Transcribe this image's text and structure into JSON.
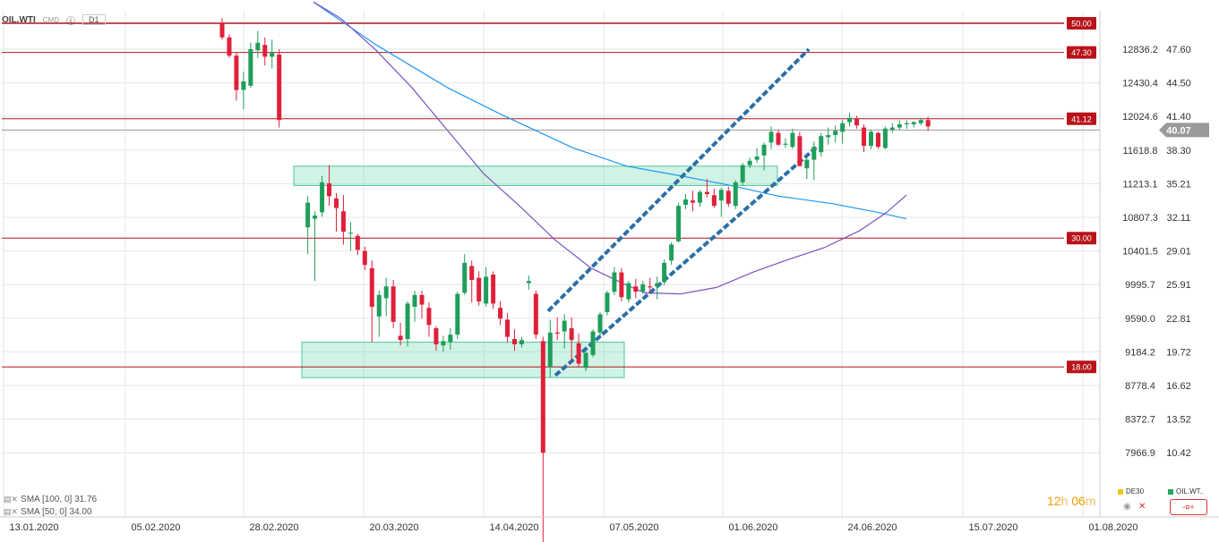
{
  "header": {
    "symbol": "OIL.WTI",
    "instrument_type": "CMD",
    "timeframe": "D1"
  },
  "indicators": [
    {
      "label": "SMA [100, 0] 31.76",
      "color": "#2196f3"
    },
    {
      "label": "SMA [50, 0] 34.00",
      "color": "#7b52c0"
    }
  ],
  "timer": {
    "hours": "12",
    "h": "h",
    "minutes": "06",
    "m": "m"
  },
  "instruments": [
    {
      "label": "DE30",
      "color": "#f5c518"
    },
    {
      "label": "OIL.WT..",
      "color": "#26a65b"
    }
  ],
  "controls": {
    "hide_icon": "eye-icon",
    "close_icon": "close-icon",
    "trade_button": "-¤+"
  },
  "chart_data": {
    "type": "candlestick",
    "symbol": "OIL.WTI",
    "right_axis_ticks": [
      "47.60",
      "44.50",
      "41.40",
      "38.30",
      "35.21",
      "32.11",
      "29.01",
      "25.91",
      "22.81",
      "19.72",
      "16.62",
      "13.52",
      "10.42"
    ],
    "left_axis_ticks": [
      "12836.2",
      "12430.4",
      "12024.6",
      "11618.8",
      "11213.1",
      "10807.3",
      "10401.5",
      "9995.7",
      "9590.0",
      "9184.2",
      "8778.4",
      "8372.7",
      "7966.9"
    ],
    "x_tick_labels": [
      "13.01.2020",
      "05.02.2020",
      "28.02.2020",
      "20.03.2020",
      "14.04.2020",
      "07.05.2020",
      "01.06.2020",
      "24.06.2020",
      "15.07.2020",
      "01.08.2020"
    ],
    "current_price": "40.07",
    "horizontal_levels": [
      "50.00",
      "47.30",
      "41.12",
      "30.00",
      "18.00"
    ],
    "candles": [
      [
        50.0,
        50.5,
        48.5,
        48.7
      ],
      [
        48.7,
        49.0,
        46.8,
        47.0
      ],
      [
        47.0,
        47.3,
        42.8,
        43.8
      ],
      [
        43.8,
        45.5,
        42.0,
        44.6
      ],
      [
        44.2,
        48.2,
        44.0,
        47.6
      ],
      [
        47.5,
        49.3,
        46.8,
        48.2
      ],
      [
        48.0,
        48.7,
        46.1,
        46.9
      ],
      [
        46.9,
        48.5,
        45.8,
        47.3
      ],
      [
        47.1,
        47.6,
        40.3,
        41.0
      ],
      [
        31.0,
        33.9,
        28.5,
        33.3
      ],
      [
        31.8,
        32.5,
        26.0,
        32.1
      ],
      [
        32.4,
        35.8,
        32.0,
        35.2
      ],
      [
        35.1,
        36.8,
        33.0,
        33.9
      ],
      [
        33.7,
        34.2,
        30.6,
        32.8
      ],
      [
        32.5,
        34.0,
        29.4,
        30.6
      ],
      [
        30.5,
        31.5,
        28.8,
        30.5
      ],
      [
        30.2,
        30.4,
        28.4,
        28.9
      ],
      [
        28.8,
        29.2,
        27.0,
        27.5
      ],
      [
        27.2,
        27.9,
        20.3,
        23.6
      ],
      [
        22.7,
        25.1,
        20.8,
        24.7
      ],
      [
        24.4,
        26.3,
        22.7,
        25.5
      ],
      [
        25.5,
        26.1,
        21.6,
        22.2
      ],
      [
        20.9,
        22.1,
        20.0,
        20.5
      ],
      [
        20.6,
        24.1,
        19.9,
        23.9
      ],
      [
        23.6,
        25.1,
        22.2,
        24.7
      ],
      [
        24.7,
        25.1,
        22.5,
        23.8
      ],
      [
        23.5,
        24.0,
        20.8,
        21.9
      ],
      [
        21.6,
        21.8,
        19.5,
        20.1
      ],
      [
        20.0,
        20.9,
        19.4,
        20.4
      ],
      [
        20.3,
        21.6,
        19.6,
        21.0
      ],
      [
        21.0,
        25.0,
        20.6,
        24.8
      ],
      [
        24.9,
        28.5,
        24.7,
        27.7
      ],
      [
        27.4,
        27.9,
        24.0,
        26.1
      ],
      [
        26.3,
        26.9,
        23.7,
        24.1
      ],
      [
        23.9,
        27.3,
        23.6,
        26.4
      ],
      [
        26.6,
        26.9,
        23.4,
        23.9
      ],
      [
        23.5,
        24.1,
        21.9,
        22.5
      ],
      [
        22.4,
        23.0,
        20.3,
        20.8
      ],
      [
        20.6,
        21.5,
        19.5,
        20.1
      ],
      [
        20.1,
        20.8,
        19.8,
        20.5
      ],
      [
        25.8,
        26.5,
        25.2,
        26.0
      ],
      [
        24.8,
        25.1,
        20.6,
        21.0
      ],
      [
        20.4,
        20.8,
        1.5,
        10.0
      ],
      [
        18.0,
        22.4,
        17.0,
        21.2
      ],
      [
        21.2,
        22.6,
        20.5,
        21.1
      ],
      [
        21.3,
        22.9,
        19.7,
        22.3
      ],
      [
        21.6,
        22.6,
        18.5,
        20.5
      ],
      [
        20.2,
        21.1,
        18.0,
        18.3
      ],
      [
        17.9,
        19.6,
        17.6,
        19.3
      ],
      [
        19.1,
        21.5,
        18.9,
        21.3
      ],
      [
        21.2,
        23.1,
        20.8,
        22.9
      ],
      [
        23.1,
        25.1,
        22.8,
        24.9
      ],
      [
        25.0,
        27.3,
        24.7,
        26.8
      ],
      [
        26.8,
        27.2,
        24.1,
        24.5
      ],
      [
        24.3,
        26.0,
        24.0,
        25.8
      ],
      [
        25.5,
        26.2,
        24.4,
        25.0
      ],
      [
        25.0,
        26.0,
        24.8,
        25.7
      ],
      [
        25.5,
        26.3,
        24.9,
        25.4
      ],
      [
        25.5,
        26.4,
        24.3,
        25.8
      ],
      [
        25.9,
        28.0,
        25.6,
        27.7
      ],
      [
        27.9,
        29.6,
        27.5,
        29.4
      ],
      [
        29.7,
        33.3,
        29.6,
        33.0
      ],
      [
        33.1,
        34.1,
        32.7,
        33.6
      ],
      [
        33.5,
        34.4,
        32.5,
        33.3
      ],
      [
        33.3,
        34.5,
        32.9,
        34.3
      ],
      [
        34.3,
        35.5,
        33.8,
        34.1
      ],
      [
        34.0,
        34.6,
        32.8,
        33.0
      ],
      [
        33.5,
        34.7,
        32.0,
        34.5
      ],
      [
        34.4,
        34.8,
        32.9,
        33.2
      ],
      [
        33.0,
        35.4,
        32.7,
        35.2
      ],
      [
        35.2,
        37.0,
        34.9,
        36.8
      ],
      [
        36.8,
        37.5,
        36.5,
        37.2
      ],
      [
        37.3,
        38.4,
        37.0,
        37.6
      ],
      [
        37.7,
        38.9,
        36.3,
        38.7
      ],
      [
        38.9,
        40.4,
        38.3,
        39.9
      ],
      [
        39.8,
        40.1,
        38.6,
        38.7
      ],
      [
        38.7,
        39.3,
        38.4,
        38.8
      ],
      [
        38.5,
        40.2,
        38.3,
        39.8
      ],
      [
        39.5,
        39.9,
        36.8,
        36.7
      ],
      [
        36.5,
        37.6,
        35.5,
        37.3
      ],
      [
        37.3,
        39.0,
        35.4,
        38.5
      ],
      [
        38.0,
        39.8,
        37.6,
        39.5
      ],
      [
        39.4,
        40.3,
        38.7,
        39.6
      ],
      [
        39.6,
        40.5,
        38.9,
        40.0
      ],
      [
        39.9,
        41.0,
        38.8,
        40.7
      ],
      [
        40.8,
        41.7,
        40.4,
        41.2
      ],
      [
        41.1,
        41.4,
        40.2,
        40.5
      ],
      [
        40.3,
        40.6,
        38.0,
        38.6
      ],
      [
        38.6,
        40.1,
        38.3,
        39.9
      ],
      [
        39.8,
        39.9,
        38.3,
        38.5
      ],
      [
        38.4,
        40.4,
        38.3,
        40.2
      ],
      [
        40.1,
        40.7,
        39.8,
        40.3
      ],
      [
        40.3,
        41.0,
        40.1,
        40.6
      ],
      [
        40.6,
        41.0,
        40.2,
        40.7
      ],
      [
        40.6,
        40.9,
        40.3,
        40.8
      ],
      [
        40.7,
        41.2,
        40.5,
        41.0
      ],
      [
        41.0,
        41.3,
        40.0,
        40.4
      ]
    ],
    "sma_100": [
      [
        350,
        52
      ],
      [
        420,
        48
      ],
      [
        500,
        44
      ],
      [
        560,
        41.5
      ],
      [
        640,
        38.4
      ],
      [
        700,
        36.7
      ],
      [
        760,
        35.8
      ],
      [
        810,
        35.0
      ],
      [
        870,
        33.9
      ],
      [
        930,
        33.2
      ],
      [
        980,
        32.4
      ],
      [
        1012,
        31.8
      ]
    ],
    "sma_50": [
      [
        350,
        52
      ],
      [
        380,
        50.5
      ],
      [
        420,
        47.5
      ],
      [
        460,
        44
      ],
      [
        500,
        40
      ],
      [
        540,
        36.0
      ],
      [
        580,
        33.0
      ],
      [
        620,
        29.8
      ],
      [
        660,
        27.2
      ],
      [
        700,
        25.6
      ],
      [
        720,
        24.9
      ],
      [
        760,
        24.8
      ],
      [
        800,
        25.4
      ],
      [
        840,
        26.8
      ],
      [
        880,
        28.0
      ],
      [
        920,
        29.1
      ],
      [
        960,
        30.7
      ],
      [
        990,
        32.4
      ],
      [
        1012,
        34.0
      ]
    ],
    "channel_lines": [
      [
        [
          612,
          23.2
        ],
        [
          903,
          47.6
        ]
      ],
      [
        [
          620,
          17.2
        ],
        [
          912,
          38.5
        ]
      ]
    ],
    "zones": [
      {
        "x1": 328,
        "x2": 868,
        "low": 34.9,
        "high": 36.7
      },
      {
        "x1": 337,
        "x2": 697,
        "low": 17.0,
        "high": 20.3
      }
    ]
  }
}
